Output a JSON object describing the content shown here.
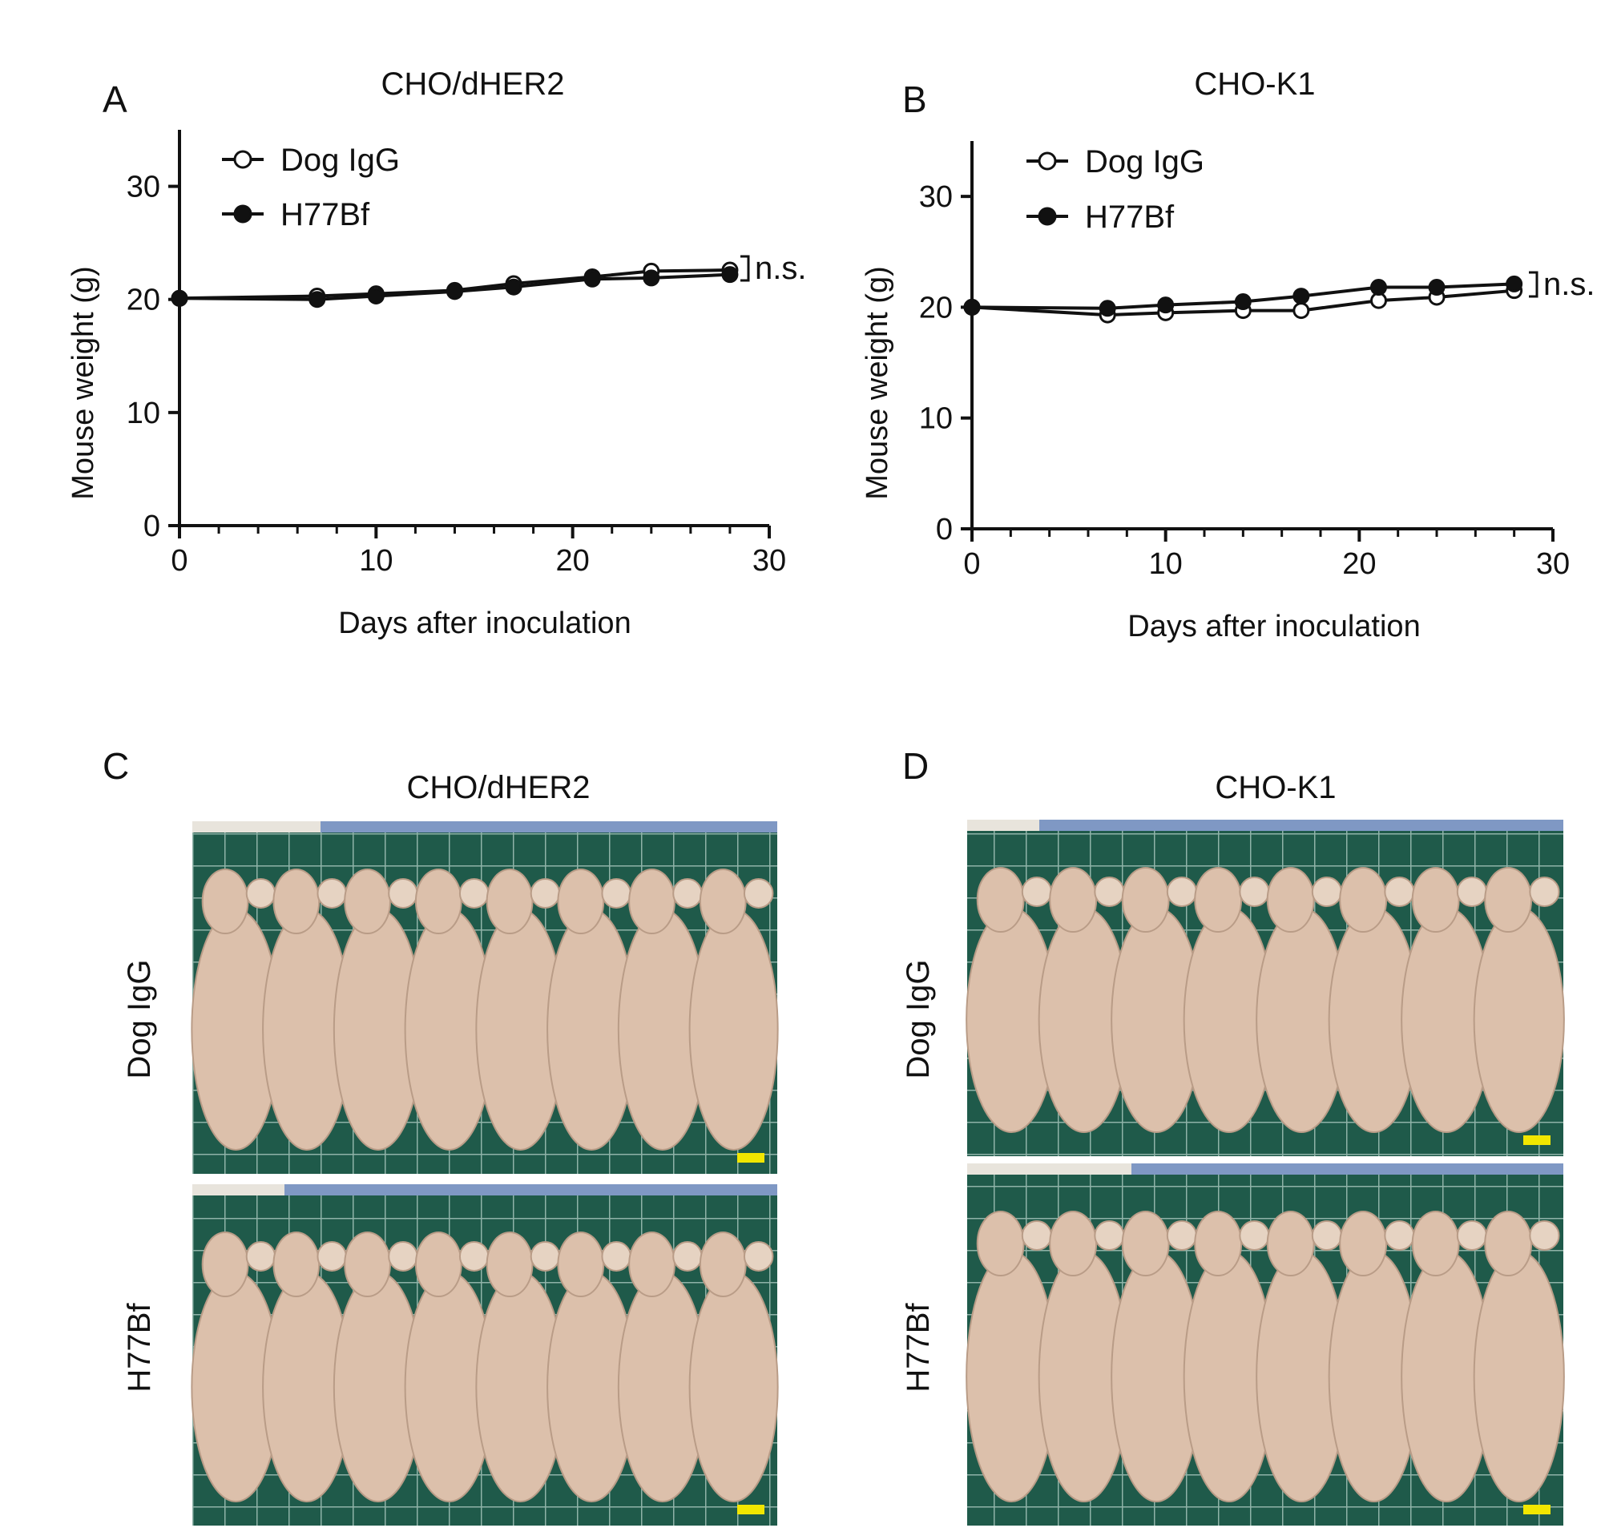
{
  "panels": {
    "a": "A",
    "b": "B",
    "c": "C",
    "d": "D"
  },
  "chart_data": [
    {
      "id": "A",
      "type": "line",
      "title": "CHO/dHER2",
      "xlabel": "Days after inoculation",
      "ylabel": "Mouse weight (g)",
      "xlim": [
        0,
        30
      ],
      "ylim": [
        0,
        35
      ],
      "xticks": [
        0,
        10,
        20,
        30
      ],
      "yticks": [
        0,
        10,
        20,
        30
      ],
      "grid": false,
      "legend_position": "top-left",
      "series": [
        {
          "name": "Dog IgG",
          "marker": "open-circle",
          "x": [
            0,
            7,
            10,
            14,
            17,
            21,
            24,
            28
          ],
          "y": [
            20.1,
            20.3,
            20.5,
            20.8,
            21.4,
            22.0,
            22.5,
            22.6
          ]
        },
        {
          "name": "H77Bf",
          "marker": "filled-circle",
          "x": [
            0,
            7,
            10,
            14,
            17,
            21,
            24,
            28
          ],
          "y": [
            20.1,
            20.0,
            20.3,
            20.7,
            21.1,
            21.8,
            21.9,
            22.2
          ]
        }
      ],
      "annotation": "n.s."
    },
    {
      "id": "B",
      "type": "line",
      "title": "CHO-K1",
      "xlabel": "Days after inoculation",
      "ylabel": "Mouse weight (g)",
      "xlim": [
        0,
        30
      ],
      "ylim": [
        0,
        35
      ],
      "xticks": [
        0,
        10,
        20,
        30
      ],
      "yticks": [
        0,
        10,
        20,
        30
      ],
      "grid": false,
      "legend_position": "top-left",
      "series": [
        {
          "name": "Dog IgG",
          "marker": "open-circle",
          "x": [
            0,
            7,
            10,
            14,
            17,
            21,
            24,
            28
          ],
          "y": [
            20.0,
            19.3,
            19.5,
            19.7,
            19.7,
            20.6,
            20.9,
            21.5
          ]
        },
        {
          "name": "H77Bf",
          "marker": "filled-circle",
          "x": [
            0,
            7,
            10,
            14,
            17,
            21,
            24,
            28
          ],
          "y": [
            20.0,
            19.9,
            20.2,
            20.5,
            21.0,
            21.8,
            21.8,
            22.1
          ]
        }
      ],
      "annotation": "n.s."
    }
  ],
  "photos": {
    "c": {
      "title": "CHO/dHER2",
      "top_label": "Dog IgG",
      "bottom_label": "H77Bf"
    },
    "d": {
      "title": "CHO-K1",
      "top_label": "Dog IgG",
      "bottom_label": "H77Bf"
    },
    "board_color": "#1f5a4a",
    "grid_color": "#8fb3a8",
    "mouse_color": "#dcc0ab",
    "scale_bar_color": "#f2e600"
  }
}
